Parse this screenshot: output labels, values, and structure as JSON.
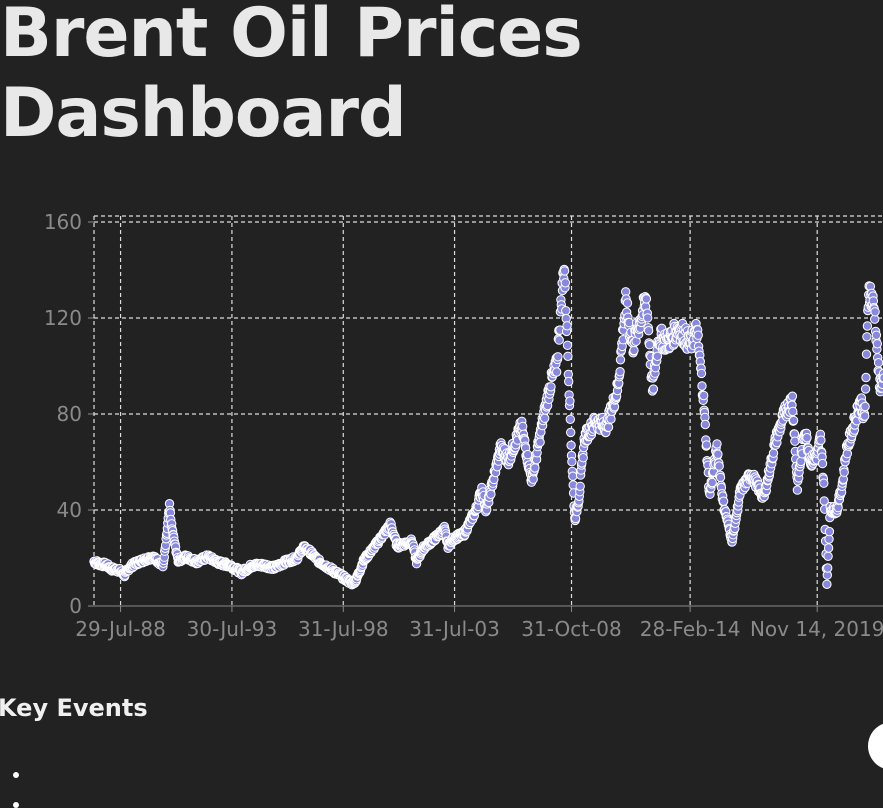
{
  "page": {
    "title": "Brent Oil Prices Dashboard"
  },
  "events": {
    "title": "Key Events",
    "items": [
      "",
      ""
    ]
  },
  "colors": {
    "background": "#222222",
    "series": "#8888dd",
    "marker_stroke": "#ffffff",
    "grid": "#dddddd",
    "tick_text": "#8a8a8a"
  },
  "chart_data": {
    "type": "scatter",
    "title": "",
    "xlabel": "",
    "ylabel": "",
    "xlim": [
      "1987-05-20",
      "2022-11-14"
    ],
    "ylim": [
      0,
      160
    ],
    "yticks": [
      0,
      40,
      80,
      120,
      160
    ],
    "xticks": [
      {
        "date": "1988-07-29",
        "label": "29-Jul-88"
      },
      {
        "date": "1993-07-30",
        "label": "30-Jul-93"
      },
      {
        "date": "1998-07-31",
        "label": "31-Jul-98"
      },
      {
        "date": "2003-07-31",
        "label": "31-Jul-03"
      },
      {
        "date": "2008-10-31",
        "label": "31-Oct-08"
      },
      {
        "date": "2014-02-28",
        "label": "28-Feb-14"
      },
      {
        "date": "2019-11-14",
        "label": "Nov 14, 2019"
      }
    ],
    "grid": true,
    "grid_style": "dashed",
    "legend": "none",
    "series": [
      {
        "x": [
          "1987-05-20",
          "1987-09-01",
          "1987-12-01",
          "1988-03-01",
          "1988-07-01",
          "1988-10-01",
          "1989-01-01",
          "1989-06-01",
          "1990-01-01",
          "1990-07-01",
          "1990-08-15",
          "1990-10-10",
          "1990-11-15",
          "1991-01-10",
          "1991-03-01",
          "1991-07-01",
          "1992-01-01",
          "1992-07-01",
          "1993-01-01",
          "1993-07-01",
          "1994-01-01",
          "1994-07-01",
          "1995-01-01",
          "1995-07-01",
          "1996-01-01",
          "1996-07-01",
          "1996-10-15",
          "1997-01-15",
          "1997-07-01",
          "1998-01-01",
          "1998-07-01",
          "1998-12-15",
          "1999-03-01",
          "1999-07-01",
          "2000-01-01",
          "2000-09-15",
          "2001-01-01",
          "2001-09-01",
          "2001-11-15",
          "2002-03-01",
          "2002-09-01",
          "2003-02-15",
          "2003-04-15",
          "2003-07-31",
          "2004-01-01",
          "2004-08-01",
          "2004-10-20",
          "2005-01-01",
          "2005-08-25",
          "2006-01-01",
          "2006-08-01",
          "2007-01-20",
          "2007-07-01",
          "2007-11-15",
          "2008-03-01",
          "2008-07-03",
          "2008-09-01",
          "2008-10-31",
          "2008-12-24",
          "2009-03-01",
          "2009-06-01",
          "2009-12-01",
          "2010-06-01",
          "2010-12-01",
          "2011-04-08",
          "2011-08-01",
          "2012-03-13",
          "2012-06-21",
          "2012-10-01",
          "2013-03-01",
          "2013-09-01",
          "2014-02-28",
          "2014-06-19",
          "2014-10-01",
          "2015-01-13",
          "2015-05-15",
          "2015-08-24",
          "2016-01-20",
          "2016-06-01",
          "2016-12-01",
          "2017-06-21",
          "2018-01-01",
          "2018-05-22",
          "2018-10-03",
          "2018-12-24",
          "2019-04-25",
          "2019-08-01",
          "2019-11-14",
          "2020-01-06",
          "2020-03-01",
          "2020-04-21",
          "2020-06-15",
          "2020-10-01",
          "2021-01-01",
          "2021-03-01",
          "2021-07-01",
          "2021-10-25",
          "2022-01-01",
          "2022-03-08",
          "2022-06-14",
          "2022-09-01",
          "2022-11-14"
        ],
        "y": [
          18.6,
          17.5,
          17.2,
          15.5,
          15.0,
          13.0,
          16.5,
          18.5,
          20.5,
          17.0,
          27.0,
          41.0,
          33.0,
          25.0,
          19.0,
          20.5,
          18.5,
          20.5,
          18.0,
          17.0,
          14.0,
          17.0,
          17.0,
          16.0,
          18.5,
          20.0,
          24.5,
          23.0,
          18.5,
          15.5,
          12.5,
          9.5,
          11.0,
          19.0,
          25.0,
          34.0,
          25.0,
          27.0,
          18.5,
          24.0,
          28.0,
          32.0,
          25.0,
          28.5,
          30.0,
          41.0,
          49.0,
          40.0,
          66.0,
          61.0,
          75.0,
          52.0,
          75.0,
          92.0,
          100.0,
          143.0,
          105.0,
          64.0,
          36.0,
          45.0,
          70.0,
          77.0,
          75.0,
          91.0,
          126.0,
          108.0,
          128.0,
          90.0,
          112.0,
          110.0,
          116.0,
          109.0,
          115.0,
          88.0,
          46.0,
          66.0,
          43.0,
          27.0,
          48.0,
          55.0,
          45.0,
          69.0,
          80.0,
          86.0,
          50.0,
          74.0,
          60.0,
          63.0,
          70.0,
          51.0,
          9.1,
          40.0,
          40.0,
          51.0,
          64.0,
          75.0,
          86.0,
          78.0,
          133.0,
          123.0,
          92.0,
          95.0
        ]
      }
    ]
  }
}
